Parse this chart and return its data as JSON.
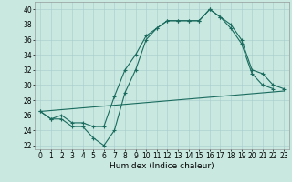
{
  "xlabel": "Humidex (Indice chaleur)",
  "bg_color": "#c8e8e0",
  "grid_color": "#a8cccc",
  "line_color": "#1a6b5e",
  "xlim": [
    -0.5,
    23.5
  ],
  "ylim": [
    21.5,
    41.0
  ],
  "yticks": [
    22,
    24,
    26,
    28,
    30,
    32,
    34,
    36,
    38,
    40
  ],
  "xticks": [
    0,
    1,
    2,
    3,
    4,
    5,
    6,
    7,
    8,
    9,
    10,
    11,
    12,
    13,
    14,
    15,
    16,
    17,
    18,
    19,
    20,
    21,
    22,
    23
  ],
  "line1_x": [
    0,
    1,
    2,
    3,
    4,
    5,
    6,
    7,
    8,
    9,
    10,
    11,
    12,
    13,
    14,
    15,
    16,
    17,
    18,
    19,
    20,
    21,
    22
  ],
  "line1_y": [
    26.5,
    25.5,
    25.5,
    24.5,
    24.5,
    23.0,
    22.0,
    24.0,
    29.0,
    32.0,
    36.0,
    37.5,
    38.5,
    38.5,
    38.5,
    38.5,
    40.0,
    39.0,
    37.5,
    35.5,
    31.5,
    30.0,
    29.5
  ],
  "line2_x": [
    0,
    1,
    2,
    3,
    4,
    5,
    6,
    7,
    8,
    9,
    10,
    11,
    12,
    13,
    14,
    15,
    16,
    17,
    18,
    19,
    20,
    21,
    22,
    23
  ],
  "line2_y": [
    26.5,
    25.5,
    26.0,
    25.0,
    25.0,
    24.5,
    24.5,
    28.5,
    32.0,
    34.0,
    36.5,
    37.5,
    38.5,
    38.5,
    38.5,
    38.5,
    40.0,
    39.0,
    38.0,
    36.0,
    32.0,
    31.5,
    30.0,
    29.5
  ],
  "line3_x": [
    0,
    23
  ],
  "line3_y": [
    26.5,
    29.2
  ],
  "figsize": [
    3.2,
    2.0
  ],
  "dpi": 100,
  "tick_fontsize": 5.5,
  "xlabel_fontsize": 6.5
}
